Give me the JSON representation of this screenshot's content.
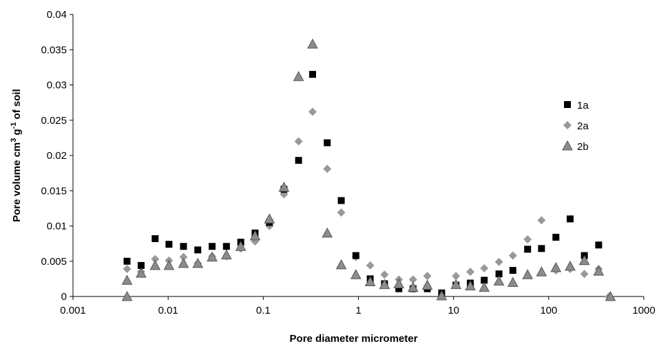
{
  "chart_data": {
    "type": "scatter",
    "xlabel": "Pore diameter micrometer",
    "ylabel_parts": [
      "Pore volume cm",
      "3",
      " g",
      "-1",
      " of soil"
    ],
    "x_scale": "log",
    "xlim": [
      0.001,
      1000
    ],
    "ylim": [
      0,
      0.04
    ],
    "x_ticks": [
      0.001,
      0.01,
      0.1,
      1,
      10,
      100,
      1000
    ],
    "x_tick_labels": [
      "0.001",
      "0.01",
      "0.1",
      "1",
      "10",
      "100",
      "1000"
    ],
    "y_ticks": [
      0,
      0.005,
      0.01,
      0.015,
      0.02,
      0.025,
      0.03,
      0.035,
      0.04
    ],
    "y_tick_labels": [
      "0",
      "0.005",
      "0.01",
      "0.015",
      "0.02",
      "0.025",
      "0.03",
      "0.035",
      "0.04"
    ],
    "grid": false,
    "legend_position": "right",
    "series": [
      {
        "name": "1a",
        "marker": "square",
        "color": "#000000",
        "points": [
          [
            0.0037,
            0.005
          ],
          [
            0.0052,
            0.0044
          ],
          [
            0.0073,
            0.0082
          ],
          [
            0.0102,
            0.0074
          ],
          [
            0.0145,
            0.0071
          ],
          [
            0.0205,
            0.0066
          ],
          [
            0.029,
            0.0071
          ],
          [
            0.041,
            0.0071
          ],
          [
            0.058,
            0.0077
          ],
          [
            0.082,
            0.009
          ],
          [
            0.116,
            0.0105
          ],
          [
            0.165,
            0.0152
          ],
          [
            0.235,
            0.0193
          ],
          [
            0.33,
            0.0315
          ],
          [
            0.47,
            0.0218
          ],
          [
            0.66,
            0.0136
          ],
          [
            0.94,
            0.0058
          ],
          [
            1.33,
            0.0025
          ],
          [
            1.88,
            0.0018
          ],
          [
            2.66,
            0.0011
          ],
          [
            3.75,
            0.0011
          ],
          [
            5.3,
            0.0011
          ],
          [
            7.5,
            0.0005
          ],
          [
            10.6,
            0.0016
          ],
          [
            15.0,
            0.0019
          ],
          [
            21.0,
            0.0023
          ],
          [
            30.0,
            0.0032
          ],
          [
            42.0,
            0.0037
          ],
          [
            60.0,
            0.0067
          ],
          [
            84.0,
            0.0068
          ],
          [
            119.0,
            0.0084
          ],
          [
            168.0,
            0.011
          ],
          [
            237.0,
            0.0058
          ],
          [
            335.0,
            0.0073
          ]
        ]
      },
      {
        "name": "2a",
        "marker": "diamond",
        "color": "#999999",
        "points": [
          [
            0.0037,
            0.0039
          ],
          [
            0.0052,
            0.0035
          ],
          [
            0.0073,
            0.0053
          ],
          [
            0.0102,
            0.0051
          ],
          [
            0.0145,
            0.0056
          ],
          [
            0.0205,
            0.0047
          ],
          [
            0.029,
            0.0057
          ],
          [
            0.041,
            0.0057
          ],
          [
            0.058,
            0.0068
          ],
          [
            0.082,
            0.0078
          ],
          [
            0.116,
            0.01
          ],
          [
            0.165,
            0.0145
          ],
          [
            0.235,
            0.022
          ],
          [
            0.33,
            0.0262
          ],
          [
            0.47,
            0.0181
          ],
          [
            0.66,
            0.0119
          ],
          [
            0.94,
            0.0056
          ],
          [
            1.33,
            0.0044
          ],
          [
            1.88,
            0.0031
          ],
          [
            2.66,
            0.0024
          ],
          [
            3.75,
            0.0024
          ],
          [
            5.3,
            0.0029
          ],
          [
            10.6,
            0.0029
          ],
          [
            15.0,
            0.0035
          ],
          [
            21.0,
            0.004
          ],
          [
            30.0,
            0.0049
          ],
          [
            42.0,
            0.0058
          ],
          [
            60.0,
            0.0081
          ],
          [
            84.0,
            0.0108
          ],
          [
            119.0,
            0.0037
          ],
          [
            168.0,
            0.0039
          ],
          [
            237.0,
            0.0032
          ],
          [
            335.0,
            0.0039
          ],
          [
            430.0,
            0.0
          ]
        ]
      },
      {
        "name": "2b",
        "marker": "triangle",
        "color": "#8c8c8c",
        "points": [
          [
            0.0037,
            0.0023
          ],
          [
            0.0037,
            0.0
          ],
          [
            0.0052,
            0.0033
          ],
          [
            0.0073,
            0.0044
          ],
          [
            0.0102,
            0.0044
          ],
          [
            0.0145,
            0.0047
          ],
          [
            0.0205,
            0.0047
          ],
          [
            0.029,
            0.0056
          ],
          [
            0.041,
            0.0059
          ],
          [
            0.058,
            0.0071
          ],
          [
            0.082,
            0.0086
          ],
          [
            0.116,
            0.011
          ],
          [
            0.165,
            0.0155
          ],
          [
            0.235,
            0.0312
          ],
          [
            0.33,
            0.0358
          ],
          [
            0.47,
            0.009
          ],
          [
            0.66,
            0.0045
          ],
          [
            0.94,
            0.0031
          ],
          [
            1.33,
            0.0021
          ],
          [
            1.88,
            0.0017
          ],
          [
            2.66,
            0.0018
          ],
          [
            3.75,
            0.0013
          ],
          [
            5.3,
            0.0016
          ],
          [
            7.5,
            0.0001
          ],
          [
            10.6,
            0.0017
          ],
          [
            15.0,
            0.0015
          ],
          [
            21.0,
            0.0013
          ],
          [
            30.0,
            0.0022
          ],
          [
            42.0,
            0.002
          ],
          [
            60.0,
            0.0031
          ],
          [
            84.0,
            0.0035
          ],
          [
            119.0,
            0.0041
          ],
          [
            168.0,
            0.0043
          ],
          [
            237.0,
            0.0051
          ],
          [
            335.0,
            0.0036
          ],
          [
            445.0,
            0.0
          ]
        ]
      }
    ]
  }
}
